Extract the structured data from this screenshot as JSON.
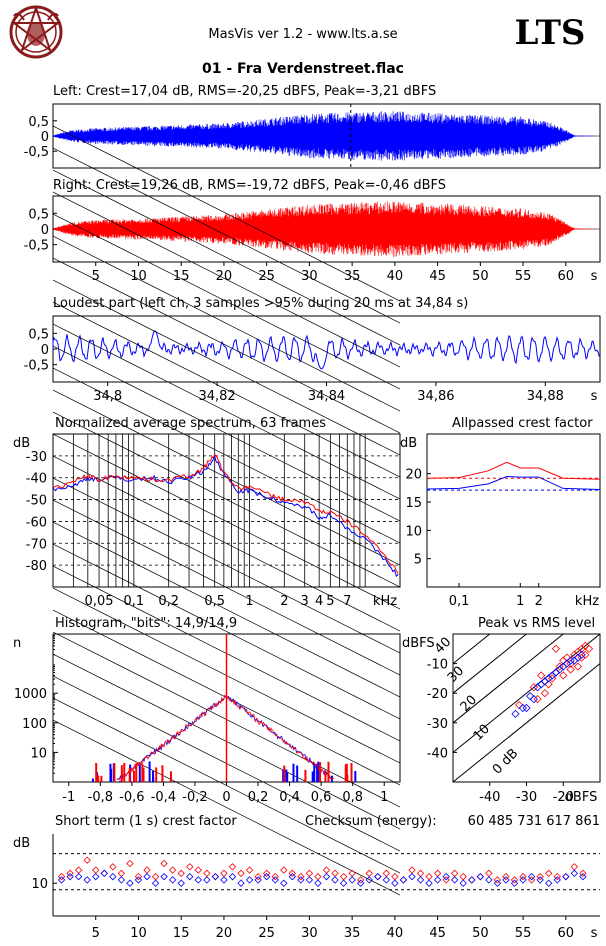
{
  "header": {
    "app_title": "MasVis ver 1.2 - www.lts.a.se",
    "file_title": "01 - Fra Verdenstreet.flac",
    "brand": "LTS"
  },
  "colors": {
    "left": "#0000ff",
    "right": "#ff0000",
    "logo": "#8b1a1a"
  },
  "icons": {
    "logo": "pentagram-goat-logo-icon"
  },
  "chart_data": [
    {
      "type": "line",
      "id": "waveform_left",
      "title": "Left: Crest=17,04 dB, RMS=-20,25 dBFS, Peak=-3,21 dBFS",
      "series": [
        {
          "color": "#0000ff"
        }
      ],
      "ylim": [
        -1,
        1
      ],
      "yticks": [
        "0,5",
        "0",
        "-0,5"
      ],
      "xlim": [
        0,
        64
      ],
      "marker_time_s": 34.84,
      "envelope": [
        [
          0,
          0.02
        ],
        [
          2,
          0.18
        ],
        [
          5,
          0.25
        ],
        [
          10,
          0.3
        ],
        [
          15,
          0.35
        ],
        [
          20,
          0.4
        ],
        [
          25,
          0.55
        ],
        [
          30,
          0.7
        ],
        [
          35,
          0.75
        ],
        [
          40,
          0.78
        ],
        [
          45,
          0.72
        ],
        [
          50,
          0.65
        ],
        [
          55,
          0.6
        ],
        [
          58,
          0.45
        ],
        [
          60,
          0.2
        ],
        [
          61,
          0.02
        ],
        [
          64,
          0.0
        ]
      ]
    },
    {
      "type": "line",
      "id": "waveform_right",
      "title": "Right: Crest=19,26 dB, RMS=-19,72 dBFS, Peak=-0,46 dBFS",
      "series": [
        {
          "color": "#ff0000"
        }
      ],
      "ylim": [
        -1,
        1
      ],
      "yticks": [
        "0,5",
        "0",
        "-0,5"
      ],
      "xticks": [
        "5",
        "10",
        "15",
        "20",
        "25",
        "30",
        "35",
        "40",
        "45",
        "50",
        "55",
        "60"
      ],
      "xunit": "s",
      "xlim": [
        0,
        64
      ],
      "envelope": [
        [
          0,
          0.02
        ],
        [
          2,
          0.2
        ],
        [
          5,
          0.28
        ],
        [
          10,
          0.32
        ],
        [
          15,
          0.38
        ],
        [
          20,
          0.45
        ],
        [
          25,
          0.6
        ],
        [
          30,
          0.75
        ],
        [
          35,
          0.8
        ],
        [
          40,
          0.85
        ],
        [
          45,
          0.78
        ],
        [
          50,
          0.7
        ],
        [
          55,
          0.62
        ],
        [
          58,
          0.5
        ],
        [
          60,
          0.2
        ],
        [
          61,
          0.02
        ],
        [
          64,
          0.0
        ]
      ]
    },
    {
      "type": "line",
      "id": "loudest_part",
      "title": "Loudest part (left  ch, 3 samples >95% during 20 ms at 34,84 s)",
      "series": [
        {
          "color": "#0000ff"
        }
      ],
      "ylim": [
        -1,
        1
      ],
      "yticks": [
        "0,5",
        "0",
        "-0,5"
      ],
      "xlim": [
        34.79,
        34.89
      ],
      "xticks": [
        "34,8",
        "34,82",
        "34,84",
        "34,86",
        "34,88"
      ],
      "xunit": "s"
    },
    {
      "type": "line",
      "id": "avg_spectrum",
      "title": "Normalized average spectrum, 63 frames",
      "ylabel": "dB",
      "xlabel": "kHz",
      "xscale": "log",
      "xlim": [
        0.02,
        20
      ],
      "ylim": [
        -90,
        -20
      ],
      "yticks": [
        "-30",
        "-40",
        "-50",
        "-60",
        "-70",
        "-80"
      ],
      "xticks": [
        "0,05",
        "0,1",
        "0,2",
        "0,5",
        "1",
        "2",
        "3",
        "4",
        "5",
        "7"
      ],
      "series": [
        {
          "color": "#0000ff",
          "x": [
            0.02,
            0.03,
            0.04,
            0.05,
            0.07,
            0.1,
            0.15,
            0.2,
            0.3,
            0.4,
            0.5,
            0.6,
            0.8,
            1,
            1.5,
            2,
            3,
            4,
            5,
            7,
            10,
            15,
            20
          ],
          "y": [
            -45,
            -44,
            -40,
            -41,
            -40,
            -41,
            -40,
            -42,
            -40,
            -37,
            -31,
            -38,
            -46,
            -46,
            -49,
            -52,
            -53,
            -58,
            -57,
            -63,
            -68,
            -78,
            -86
          ]
        },
        {
          "color": "#ff0000",
          "x": [
            0.02,
            0.03,
            0.04,
            0.05,
            0.07,
            0.1,
            0.15,
            0.2,
            0.3,
            0.4,
            0.5,
            0.6,
            0.8,
            1,
            1.5,
            2,
            3,
            4,
            5,
            7,
            10,
            15,
            20
          ],
          "y": [
            -45,
            -42,
            -39,
            -41,
            -39,
            -40,
            -41,
            -41,
            -39,
            -36,
            -29,
            -38,
            -45,
            -44,
            -48,
            -50,
            -51,
            -55,
            -56,
            -60,
            -66,
            -76,
            -84
          ]
        }
      ]
    },
    {
      "type": "line",
      "id": "allpassed_crest",
      "title": "Allpassed crest factor",
      "ylabel": "dB",
      "xlabel": "kHz",
      "xscale": "log",
      "xlim": [
        0.03,
        20
      ],
      "ylim": [
        0,
        27
      ],
      "yticks": [
        "20",
        "15",
        "10",
        "5"
      ],
      "xticks": [
        "0,1",
        "1",
        "2"
      ],
      "series": [
        {
          "color": "#ff0000",
          "x": [
            0.03,
            0.1,
            0.3,
            0.6,
            1,
            2,
            5,
            20
          ],
          "y": [
            19.2,
            19.3,
            20.5,
            22,
            21,
            21,
            19.2,
            19
          ]
        },
        {
          "color": "#0000ff",
          "x": [
            0.03,
            0.1,
            0.3,
            0.6,
            1,
            2,
            5,
            20
          ],
          "y": [
            17.3,
            17.4,
            18.2,
            19.5,
            19.4,
            19.4,
            17.4,
            17.2
          ]
        }
      ],
      "reference_lines": [
        {
          "color": "#ff0000",
          "y": 19.2
        },
        {
          "color": "#0000ff",
          "y": 17.1
        }
      ]
    },
    {
      "type": "line",
      "id": "histogram",
      "title": "Histogram, \"bits\": 14,9/14,9",
      "ylabel": "n",
      "yscale": "log",
      "xlim": [
        -1.1,
        1.1
      ],
      "ylim": [
        1,
        100000
      ],
      "yticks": [
        "1000",
        "100",
        "10"
      ],
      "xticks": [
        "-1",
        "-0,8",
        "-0,6",
        "-0,4",
        "-0,2",
        "0",
        "0,2",
        "0,4",
        "0,6",
        "0,8",
        "1"
      ],
      "series": [
        {
          "color": "#ff0000"
        },
        {
          "color": "#0000ff"
        }
      ]
    },
    {
      "type": "scatter",
      "id": "peak_vs_rms",
      "title": "Peak vs RMS level",
      "ylabel": "dBFS",
      "xlabel": "dBFS",
      "xlim": [
        -50,
        -10
      ],
      "ylim": [
        -50,
        0
      ],
      "yticks": [
        "-10",
        "-20",
        "-30",
        "-40"
      ],
      "xticks": [
        "-40",
        "-30",
        "-20"
      ],
      "crest_lines": [
        "0 dB",
        "10",
        "20",
        "30",
        "40"
      ],
      "series": [
        {
          "color": "#ff0000",
          "points": [
            [
              -27,
              -22
            ],
            [
              -25,
              -20
            ],
            [
              -24,
              -17
            ],
            [
              -23,
              -15
            ],
            [
              -22,
              -13
            ],
            [
              -21,
              -11
            ],
            [
              -20,
              -9
            ],
            [
              -19,
              -8
            ],
            [
              -18,
              -10
            ],
            [
              -17,
              -7
            ],
            [
              -16,
              -6
            ],
            [
              -15,
              -5
            ],
            [
              -15,
              -8
            ],
            [
              -14,
              -4
            ],
            [
              -14,
              -7
            ],
            [
              -13,
              -5
            ],
            [
              -22,
              -5
            ],
            [
              -32,
              -24
            ],
            [
              -28,
              -18
            ],
            [
              -26,
              -14
            ],
            [
              -20,
              -14
            ],
            [
              -18,
              -12
            ],
            [
              -16,
              -11
            ]
          ]
        },
        {
          "color": "#0000ff",
          "points": [
            [
              -33,
              -27
            ],
            [
              -30,
              -25
            ],
            [
              -28,
              -22
            ],
            [
              -27,
              -18
            ],
            [
              -26,
              -17
            ],
            [
              -25,
              -16
            ],
            [
              -24,
              -15
            ],
            [
              -23,
              -14
            ],
            [
              -22,
              -13
            ],
            [
              -21,
              -12
            ],
            [
              -20,
              -11
            ],
            [
              -19,
              -10
            ],
            [
              -18,
              -9
            ],
            [
              -17,
              -9
            ],
            [
              -16,
              -8
            ],
            [
              -15,
              -7
            ],
            [
              -31,
              -25
            ],
            [
              -29,
              -21
            ]
          ]
        }
      ]
    },
    {
      "type": "scatter",
      "id": "short_term_crest",
      "title": "Short term (1 s) crest factor",
      "ylabel": "dB",
      "xlim": [
        0,
        64
      ],
      "ylim": [
        0,
        25
      ],
      "yticks": [
        "10"
      ],
      "xticks": [
        "5",
        "10",
        "15",
        "20",
        "25",
        "30",
        "35",
        "40",
        "45",
        "50",
        "55",
        "60"
      ],
      "xunit": "s",
      "checksum_label": "Checksum (energy):",
      "checksum_value": "60 485 731 617 861",
      "reference_lines": [
        {
          "color": "#000000",
          "y": 19
        },
        {
          "color": "#000000",
          "y": 8
        }
      ],
      "series": [
        {
          "color": "#ff0000",
          "values": [
            12,
            13,
            14,
            17,
            14,
            13,
            15,
            13,
            16,
            12,
            14,
            12,
            16,
            14,
            13,
            15,
            14,
            13,
            12,
            13,
            15,
            13,
            14,
            12,
            13,
            12,
            14,
            13,
            12,
            13,
            12,
            14,
            13,
            12,
            13,
            11,
            13,
            12,
            13,
            12,
            11,
            14,
            13,
            12,
            13,
            11,
            13,
            12,
            11,
            12,
            13,
            11,
            12,
            11,
            12,
            11,
            12,
            13,
            12,
            12,
            15,
            13
          ]
        },
        {
          "color": "#0000ff",
          "values": [
            11,
            12,
            12,
            11,
            12,
            13,
            12,
            11,
            10,
            11,
            12,
            10,
            12,
            11,
            10,
            12,
            11,
            11,
            12,
            11,
            12,
            10,
            11,
            11,
            12,
            11,
            10,
            12,
            11,
            11,
            10,
            12,
            11,
            10,
            11,
            10,
            11,
            12,
            11,
            10,
            11,
            12,
            11,
            10,
            11,
            12,
            11,
            10,
            11,
            12,
            11,
            10,
            11,
            10,
            11,
            12,
            11,
            10,
            11,
            12,
            13,
            12
          ]
        }
      ]
    }
  ]
}
